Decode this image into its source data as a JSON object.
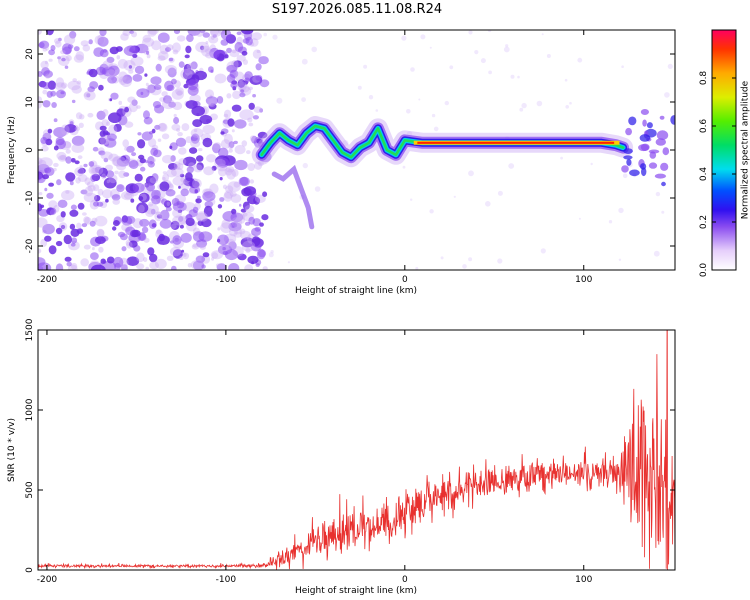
{
  "title": "S197.2026.085.11.08.R24",
  "colors": {
    "snr_line": "#e8312f",
    "spectrogram_noise": "#8a4cf0",
    "background": "#ffffff",
    "axes": "#000000"
  },
  "chart_data": [
    {
      "type": "heatmap",
      "name": "spectrogram",
      "xlabel": "Height of straight line (km)",
      "ylabel": "Frequency (Hz)",
      "xlim": [
        -205,
        151
      ],
      "ylim": [
        -25,
        25
      ],
      "x_ticks": [
        -200,
        -100,
        0,
        100
      ],
      "y_ticks": [
        -20,
        -10,
        0,
        10,
        20
      ],
      "colorbar": {
        "label": "Normalized spectral amplitude",
        "range": [
          0,
          1
        ],
        "ticks": [
          0.0,
          0.2,
          0.4,
          0.6,
          0.8
        ],
        "tick_labels": [
          "0.0",
          "0.2",
          "0.4",
          "0.6",
          "0.8"
        ]
      },
      "noise_region_km": [
        -205,
        -78
      ],
      "signal_track": {
        "x": [
          -80,
          -75,
          -70,
          -65,
          -60,
          -55,
          -50,
          -45,
          -40,
          -35,
          -30,
          -25,
          -20,
          -15,
          -10,
          -5,
          0,
          10,
          20,
          40,
          60,
          80,
          100,
          110,
          118,
          122
        ],
        "y": [
          -1,
          1.5,
          3.5,
          2,
          1,
          3.5,
          5,
          4.5,
          2,
          -0.5,
          -1.5,
          0.5,
          1.5,
          4.5,
          0,
          -1,
          2,
          1.5,
          1.5,
          1.5,
          1.5,
          1.5,
          1.5,
          1.5,
          1,
          0.5
        ]
      },
      "peak_segment_km": [
        5,
        120
      ],
      "peak_frequency_hz": 1.5,
      "secondary_trail": {
        "x": [
          -73,
          -68,
          -62,
          -57,
          -54,
          -52
        ],
        "y": [
          -5,
          -6,
          -4,
          -9,
          -12,
          -16
        ]
      }
    },
    {
      "type": "line",
      "name": "snr",
      "xlabel": "Height of straight line (km)",
      "ylabel": "SNR (10 * v/v)",
      "xlim": [
        -205,
        151
      ],
      "ylim": [
        0,
        1500
      ],
      "x_ticks": [
        -200,
        -100,
        0,
        100
      ],
      "y_ticks": [
        0,
        500,
        1000,
        1500
      ],
      "series": [
        {
          "name": "SNR",
          "x": [
            -205,
            -150,
            -100,
            -80,
            -70,
            -60,
            -50,
            -40,
            -30,
            -20,
            -10,
            0,
            10,
            20,
            30,
            40,
            50,
            60,
            70,
            80,
            90,
            100,
            110,
            120,
            125,
            130,
            135,
            140,
            145,
            151
          ],
          "level": [
            25,
            25,
            25,
            28,
            60,
            130,
            170,
            210,
            240,
            280,
            320,
            380,
            410,
            450,
            490,
            520,
            545,
            565,
            580,
            590,
            600,
            600,
            605,
            600,
            600,
            560,
            530,
            510,
            480,
            450
          ],
          "noise": [
            8,
            8,
            8,
            10,
            45,
            70,
            80,
            90,
            100,
            100,
            110,
            120,
            110,
            100,
            90,
            90,
            85,
            85,
            85,
            85,
            85,
            85,
            90,
            110,
            350,
            450,
            520,
            520,
            480,
            400
          ]
        }
      ]
    }
  ]
}
